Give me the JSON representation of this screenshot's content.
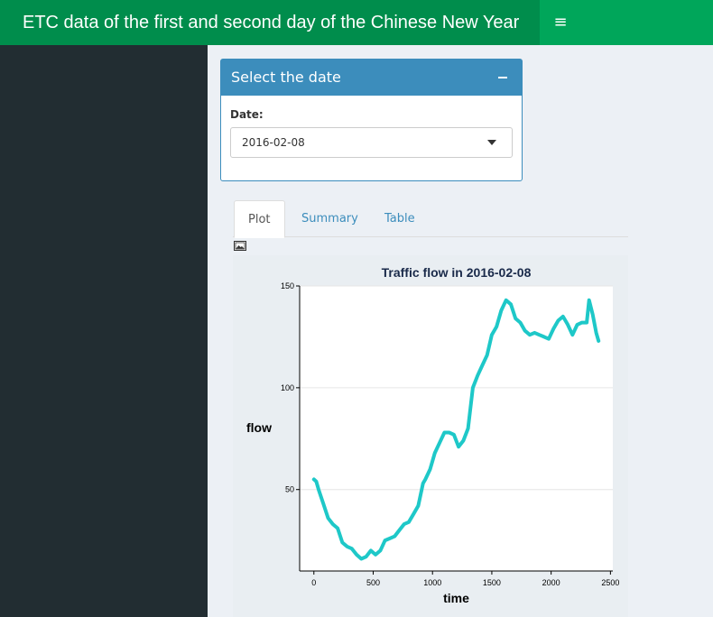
{
  "header": {
    "title": "ETC data of the first and second day of the Chinese New Year",
    "toggle_glyph": "≡"
  },
  "box": {
    "title": "Select the date",
    "field_label": "Date:",
    "selected_date": "2016-02-08"
  },
  "tabs": [
    {
      "label": "Plot",
      "active": true
    },
    {
      "label": "Summary",
      "active": false
    },
    {
      "label": "Table",
      "active": false
    }
  ],
  "colors": {
    "navbar": "#00a65a",
    "logo_bg": "#008d4c",
    "sidebar": "#222d32",
    "box_primary": "#3c8dbc",
    "line": "#1ec8c8"
  },
  "chart_data": {
    "type": "line",
    "title": "Traffic flow in 2016-02-08",
    "xlabel": "time",
    "ylabel": "flow",
    "xlim": [
      -120,
      2520
    ],
    "ylim": [
      10,
      150
    ],
    "x_ticks": [
      0,
      500,
      1000,
      1500,
      2000,
      2500
    ],
    "y_ticks": [
      50,
      100,
      150
    ],
    "grid": true,
    "series": [
      {
        "x": [
          0,
          20,
          40,
          80,
          120,
          160,
          200,
          240,
          280,
          320,
          360,
          400,
          440,
          480,
          520,
          560,
          600,
          640,
          680,
          720,
          760,
          800,
          840,
          880,
          920,
          940,
          980,
          1020,
          1060,
          1100,
          1140,
          1180,
          1220,
          1260,
          1300,
          1340,
          1380,
          1420,
          1460,
          1500,
          1540,
          1580,
          1620,
          1660,
          1700,
          1740,
          1780,
          1820,
          1860,
          1900,
          1940,
          1980,
          2020,
          2060,
          2100,
          2140,
          2180,
          2220,
          2260,
          2300,
          2320,
          2350,
          2380,
          2400
        ],
        "y": [
          55,
          54,
          50,
          43,
          36,
          33,
          31,
          24,
          22,
          21,
          18,
          16,
          17,
          20,
          18,
          20,
          25,
          26,
          27,
          30,
          33,
          34,
          38,
          42,
          53,
          55,
          60,
          68,
          73,
          78,
          78,
          77,
          71,
          74,
          80,
          100,
          106,
          111,
          116,
          126,
          130,
          138,
          143,
          141,
          134,
          132,
          128,
          126,
          127,
          126,
          125,
          124,
          129,
          133,
          135,
          131,
          126,
          131,
          132,
          132,
          143,
          136,
          127,
          123
        ]
      }
    ]
  }
}
